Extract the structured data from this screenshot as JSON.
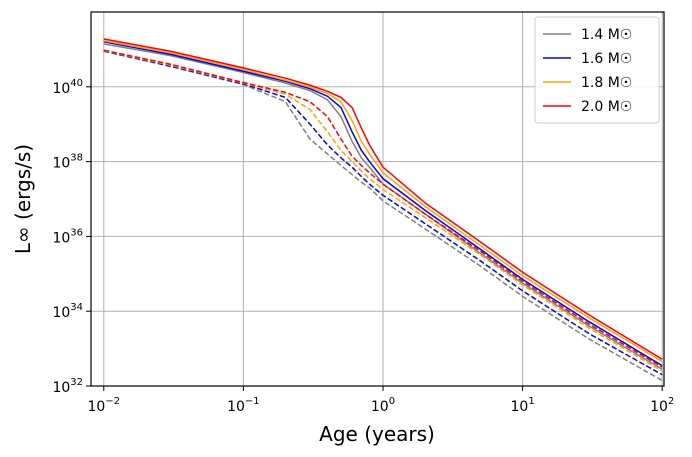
{
  "chart_data": {
    "type": "line",
    "xlabel": "Age (years)",
    "ylabel": "L∞ (ergs/s)",
    "xscale": "log",
    "yscale": "log",
    "grid": true,
    "legend": "upper right",
    "xlim": [
      0.0081,
      103
    ],
    "ylim": [
      1e+32,
      1e+42
    ],
    "xticks": [
      {
        "value": 0.01,
        "label": "10",
        "exp": "−2"
      },
      {
        "value": 0.1,
        "label": "10",
        "exp": "−1"
      },
      {
        "value": 1,
        "label": "10",
        "exp": "0"
      },
      {
        "value": 10,
        "label": "10",
        "exp": "1"
      },
      {
        "value": 100,
        "label": "10",
        "exp": "2"
      }
    ],
    "yticks": [
      {
        "value": 1e+32,
        "label": "10",
        "exp": "32"
      },
      {
        "value": 1e+34,
        "label": "10",
        "exp": "34"
      },
      {
        "value": 1e+36,
        "label": "10",
        "exp": "36"
      },
      {
        "value": 1e+38,
        "label": "10",
        "exp": "38"
      },
      {
        "value": 1e+40,
        "label": "10",
        "exp": "40"
      }
    ],
    "x": [
      0.01,
      0.03,
      0.1,
      0.2,
      0.3,
      0.4,
      0.5,
      0.6,
      0.7,
      0.8,
      1,
      2,
      5,
      10,
      30,
      100
    ],
    "series": [
      {
        "name": "1.4 M☉",
        "color": "#808080",
        "values": [
          1.4e+41,
          6.8e+40,
          2.4e+40,
          1.26e+40,
          7.9e+39,
          4.5e+39,
          1.6e+39,
          3.5e+38,
          1.26e+38,
          7.1e+37,
          2.5e+37,
          4e+36,
          3.5e+35,
          5.6e+34,
          4e+33,
          2.8e+32
        ]
      },
      {
        "name": "1.6 M☉",
        "color": "#0000ff",
        "values": [
          1.6e+41,
          7.4e+40,
          2.6e+40,
          1.4e+40,
          8.9e+39,
          5.6e+39,
          2.8e+39,
          6.3e+38,
          2e+38,
          1e+38,
          3.5e+37,
          5e+36,
          4.5e+35,
          7.1e+34,
          5.2e+33,
          3.5e+32
        ]
      },
      {
        "name": "1.8 M☉",
        "color": "#ffa500",
        "values": [
          1.7e+41,
          8.1e+40,
          2.9e+40,
          1.5e+40,
          9.8e+39,
          6.6e+39,
          4e+39,
          1.26e+39,
          3.5e+38,
          1.6e+38,
          5e+37,
          6.3e+36,
          5.6e+35,
          8.9e+34,
          6.6e+33,
          4.5e+32
        ]
      },
      {
        "name": "2.0 M☉",
        "color": "#ff0000",
        "values": [
          1.9e+41,
          8.9e+40,
          3.2e+40,
          1.7e+40,
          1.1e+40,
          7.6e+39,
          5.2e+39,
          2.8e+39,
          7.9e+38,
          2.8e+38,
          7.1e+37,
          7.9e+36,
          7.1e+35,
          1.1e+35,
          7.9e+33,
          5.2e+32
        ]
      },
      {
        "color": "#808080",
        "dashed": true,
        "values": [
          8.9e+40,
          3.5e+40,
          1.15e+40,
          4e+39,
          4e+38,
          1.6e+38,
          7.9e+37,
          4.5e+37,
          2.8e+37,
          2e+37,
          8.9e+36,
          1.6e+36,
          1.6e+35,
          2.5e+34,
          1.8e+33,
          1.4e+32
        ]
      },
      {
        "color": "#0000ff",
        "dashed": true,
        "values": [
          9.1e+40,
          3.6e+40,
          1.2e+40,
          5.2e+39,
          1e+39,
          2.8e+38,
          1.26e+38,
          7.1e+37,
          4e+37,
          2.5e+37,
          1.26e+37,
          2.2e+36,
          2.2e+35,
          3.5e+34,
          2.5e+33,
          2e+32
        ]
      },
      {
        "color": "#ffa500",
        "dashed": true,
        "values": [
          9.3e+40,
          3.8e+40,
          1.26e+40,
          6.3e+39,
          2.5e+39,
          6.3e+38,
          2e+38,
          1e+38,
          5.6e+37,
          3.5e+37,
          1.8e+37,
          3.2e+36,
          3.2e+35,
          5e+34,
          3.5e+33,
          2.5e+32
        ]
      },
      {
        "color": "#ff0000",
        "dashed": true,
        "values": [
          9.5e+40,
          4e+40,
          1.3e+40,
          7.1e+39,
          4e+39,
          1.6e+39,
          4e+38,
          1.4e+38,
          7.9e+37,
          5e+37,
          2.5e+37,
          4e+36,
          4e+35,
          6.3e+34,
          4.5e+33,
          3.2e+32
        ]
      }
    ]
  }
}
